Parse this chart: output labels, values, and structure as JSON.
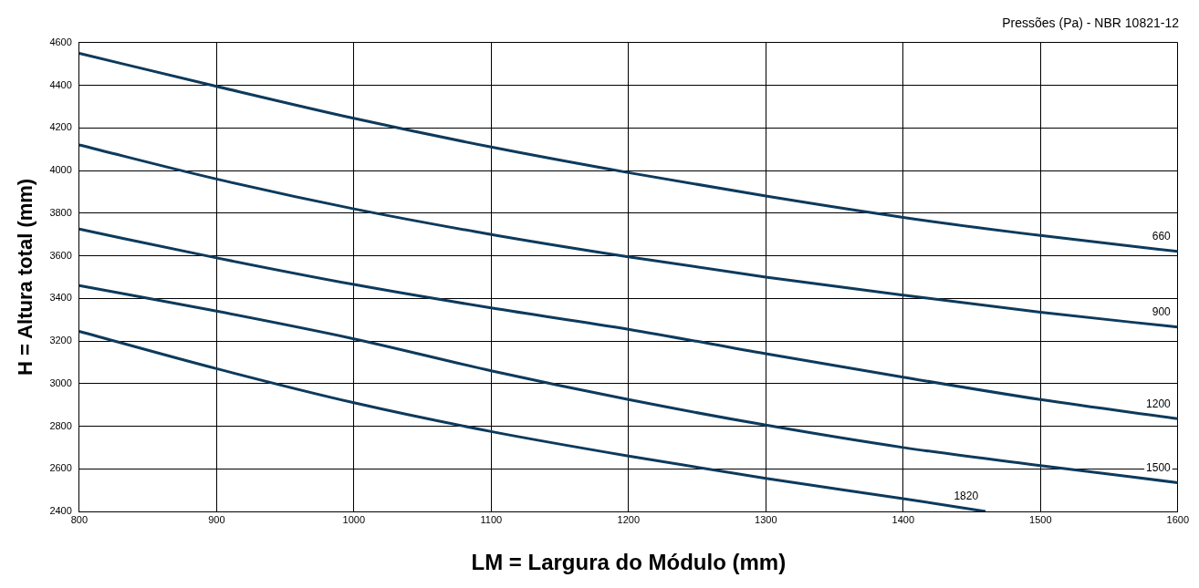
{
  "chart_data": {
    "type": "line",
    "title": "Pressões (Pa) - NBR 10821-12",
    "xlabel": "LM = Largura do Módulo (mm)",
    "ylabel": "H = Altura total (mm)",
    "xlim": [
      800,
      1600
    ],
    "xticks": [
      800,
      900,
      1000,
      1100,
      1200,
      1300,
      1400,
      1500,
      1600
    ],
    "ylim": [
      2400,
      4600
    ],
    "yticks": [
      2400,
      2600,
      2800,
      3000,
      3200,
      3400,
      3600,
      3800,
      4000,
      4200,
      4400,
      4600
    ],
    "grid": true,
    "legend": false,
    "marker": "none",
    "line_style": "solid",
    "series": [
      {
        "name": "660",
        "color": "#0d3a5c",
        "x": [
          800,
          900,
          1000,
          1100,
          1200,
          1300,
          1400,
          1500,
          1600
        ],
        "values": [
          4550,
          4395,
          4245,
          4110,
          3990,
          3880,
          3780,
          3695,
          3620
        ]
      },
      {
        "name": "900",
        "color": "#0d3a5c",
        "x": [
          800,
          900,
          1000,
          1100,
          1200,
          1300,
          1400,
          1500,
          1600
        ],
        "values": [
          4120,
          3960,
          3820,
          3700,
          3595,
          3500,
          3415,
          3335,
          3265
        ]
      },
      {
        "name": "1200",
        "color": "#0d3a5c",
        "x": [
          800,
          900,
          1000,
          1100,
          1200,
          1300,
          1400,
          1500,
          1600
        ],
        "values": [
          3725,
          3590,
          3465,
          3355,
          3255,
          3140,
          3030,
          2925,
          2835
        ]
      },
      {
        "name": "1500",
        "color": "#0d3a5c",
        "x": [
          800,
          900,
          1000,
          1100,
          1200,
          1300,
          1400,
          1500,
          1600
        ],
        "values": [
          3460,
          3340,
          3210,
          3060,
          2925,
          2805,
          2700,
          2615,
          2535
        ]
      },
      {
        "name": "1820",
        "color": "#0d3a5c",
        "x": [
          800,
          900,
          1000,
          1100,
          1200,
          1300,
          1400,
          1460
        ],
        "values": [
          3245,
          3070,
          2910,
          2775,
          2660,
          2555,
          2460,
          2400
        ]
      }
    ]
  }
}
